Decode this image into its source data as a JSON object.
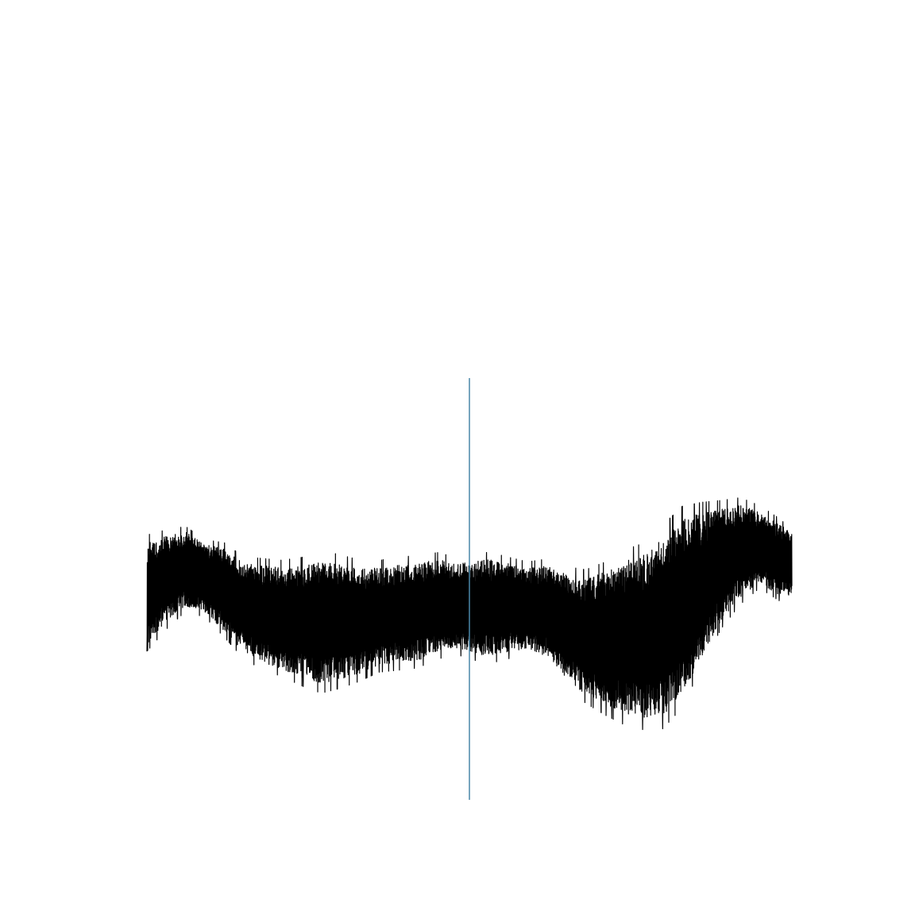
{
  "chart_data": {
    "type": "line",
    "title": "",
    "xlabel": "",
    "ylabel": "",
    "grid": false,
    "legend": "none",
    "axes_visible": false,
    "colors": {
      "signal": "#000000",
      "marker": "#4a87a9",
      "background": "#ffffff"
    },
    "xlim": [
      0,
      1
    ],
    "ylim": [
      -1,
      1
    ],
    "samples": 3600,
    "envelope": {
      "x": [
        0.0,
        0.03,
        0.06,
        0.09,
        0.12,
        0.15,
        0.18,
        0.21,
        0.24,
        0.27,
        0.3,
        0.33,
        0.36,
        0.39,
        0.42,
        0.45,
        0.48,
        0.5,
        0.53,
        0.56,
        0.59,
        0.62,
        0.65,
        0.68,
        0.71,
        0.74,
        0.77,
        0.8,
        0.83,
        0.86,
        0.89,
        0.92,
        0.95,
        0.98,
        1.0
      ],
      "upper": [
        0.22,
        0.25,
        0.27,
        0.21,
        0.19,
        0.12,
        0.11,
        0.1,
        0.11,
        0.14,
        0.12,
        0.1,
        0.1,
        0.12,
        0.12,
        0.14,
        0.12,
        0.13,
        0.14,
        0.12,
        0.1,
        0.11,
        0.07,
        0.05,
        0.08,
        0.13,
        0.16,
        0.24,
        0.33,
        0.36,
        0.38,
        0.4,
        0.37,
        0.31,
        0.26
      ],
      "lower": [
        -0.26,
        -0.16,
        -0.08,
        -0.11,
        -0.2,
        -0.3,
        -0.35,
        -0.38,
        -0.42,
        -0.45,
        -0.43,
        -0.4,
        -0.36,
        -0.35,
        -0.34,
        -0.3,
        -0.28,
        -0.3,
        -0.32,
        -0.3,
        -0.28,
        -0.32,
        -0.42,
        -0.5,
        -0.55,
        -0.59,
        -0.61,
        -0.6,
        -0.5,
        -0.32,
        -0.15,
        -0.04,
        0.03,
        -0.03,
        -0.03
      ]
    },
    "vertical_line": {
      "x": 0.5,
      "ymin": -1,
      "ymax": 1
    }
  }
}
